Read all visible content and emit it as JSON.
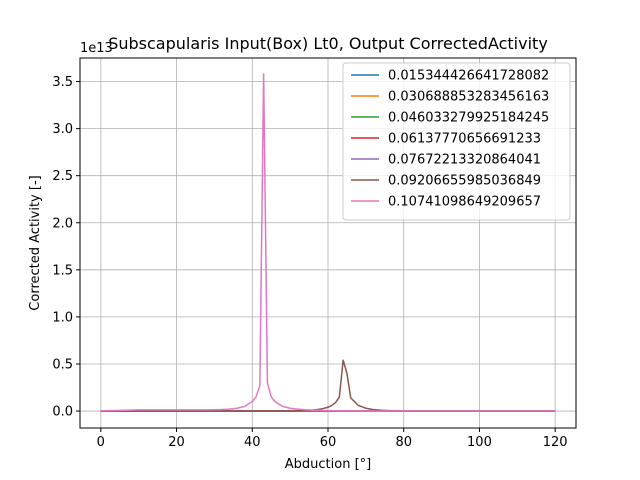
{
  "chart_data": {
    "type": "line",
    "title": "Subscapularis Input(Box) Lt0, Output CorrectedActivity",
    "xlabel": "Abduction [°]",
    "ylabel": "Corrected Activity [-]",
    "y_offset_label": "1e13",
    "xlim": [
      -5.5,
      125.5
    ],
    "ylim": [
      -0.18,
      3.75
    ],
    "x_ticks": [
      0,
      20,
      40,
      60,
      80,
      100,
      120
    ],
    "y_ticks": [
      0.0,
      0.5,
      1.0,
      1.5,
      2.0,
      2.5,
      3.0,
      3.5
    ],
    "x_tick_labels": [
      "0",
      "20",
      "40",
      "60",
      "80",
      "100",
      "120"
    ],
    "y_tick_labels": [
      "0.0",
      "0.5",
      "1.0",
      "1.5",
      "2.0",
      "2.5",
      "3.0",
      "3.5"
    ],
    "grid": true,
    "legend_position": "top-right",
    "x": [
      0,
      2,
      4,
      6,
      8,
      10,
      12,
      14,
      16,
      18,
      20,
      22,
      24,
      26,
      28,
      30,
      32,
      34,
      36,
      38,
      40,
      41,
      42,
      43,
      44,
      45,
      46,
      48,
      50,
      52,
      54,
      56,
      58,
      60,
      61,
      62,
      63,
      64,
      65,
      66,
      68,
      70,
      72,
      74,
      76,
      78,
      80,
      85,
      90,
      95,
      100,
      105,
      110,
      115,
      120
    ],
    "series": [
      {
        "name": "0.015344426641728082",
        "color": "#1f77b4",
        "values": [
          0,
          0,
          0,
          0,
          0,
          0,
          0,
          0,
          0,
          0,
          0,
          0,
          0,
          0,
          0,
          0,
          0,
          0,
          0,
          0,
          0,
          0,
          0,
          0,
          0,
          0,
          0,
          0,
          0,
          0,
          0,
          0,
          0,
          0,
          0,
          0,
          0,
          0,
          0,
          0,
          0,
          0,
          0,
          0,
          0,
          0,
          0,
          0,
          0,
          0,
          0,
          0,
          0,
          0,
          0
        ]
      },
      {
        "name": "0.030688853283456163",
        "color": "#ff7f0e",
        "values": [
          0,
          0,
          0,
          0,
          0,
          0,
          0,
          0,
          0,
          0,
          0,
          0,
          0,
          0,
          0,
          0,
          0,
          0,
          0,
          0,
          0,
          0,
          0,
          0,
          0,
          0,
          0,
          0,
          0,
          0,
          0,
          0,
          0,
          0,
          0,
          0,
          0,
          0,
          0,
          0,
          0,
          0,
          0,
          0,
          0,
          0,
          0,
          0,
          0,
          0,
          0,
          0,
          0,
          0,
          0
        ]
      },
      {
        "name": "0.046033279925184245",
        "color": "#2ca02c",
        "values": [
          0,
          0,
          0,
          0,
          0,
          0,
          0,
          0,
          0,
          0,
          0,
          0,
          0,
          0,
          0,
          0,
          0,
          0,
          0,
          0,
          0,
          0,
          0,
          0,
          0,
          0,
          0,
          0,
          0,
          0,
          0,
          0,
          0,
          0,
          0,
          0,
          0,
          0,
          0,
          0,
          0,
          0,
          0,
          0,
          0,
          0,
          0,
          0,
          0,
          0,
          0,
          0,
          0,
          0,
          0
        ]
      },
      {
        "name": "0.06137770656691233",
        "color": "#d62728",
        "values": [
          0,
          0,
          0,
          0,
          0,
          0,
          0,
          0,
          0,
          0,
          0,
          0,
          0,
          0,
          0,
          0,
          0,
          0,
          0,
          0,
          0,
          0,
          0,
          0,
          0,
          0,
          0,
          0,
          0,
          0,
          0,
          0,
          0,
          0,
          0,
          0,
          0,
          0,
          0,
          0,
          0,
          0,
          0,
          0,
          0,
          0,
          0,
          0,
          0,
          0,
          0,
          0,
          0,
          0,
          0
        ]
      },
      {
        "name": "0.07672213320864041",
        "color": "#9467bd",
        "values": [
          0,
          0,
          0,
          0,
          0,
          0,
          0,
          0,
          0,
          0,
          0,
          0,
          0,
          0,
          0,
          0,
          0,
          0,
          0,
          0,
          0,
          0,
          0,
          0,
          0,
          0,
          0,
          0,
          0,
          0,
          0,
          0,
          0,
          0,
          0,
          0,
          0,
          0,
          0,
          0,
          0,
          0,
          0,
          0,
          0,
          0,
          0,
          0,
          0,
          0,
          0,
          0,
          0,
          0,
          0
        ]
      },
      {
        "name": "0.09206655985036849",
        "color": "#8c564b",
        "values": [
          0,
          0,
          0,
          0,
          0.001,
          0.001,
          0.001,
          0.001,
          0.001,
          0.001,
          0.001,
          0.001,
          0.001,
          0.001,
          0.001,
          0.001,
          0.001,
          0.001,
          0.001,
          0.001,
          0.001,
          0.001,
          0.001,
          0.001,
          0.001,
          0.001,
          0.001,
          0.002,
          0.003,
          0.004,
          0.006,
          0.01,
          0.02,
          0.04,
          0.06,
          0.09,
          0.15,
          0.54,
          0.4,
          0.14,
          0.06,
          0.03,
          0.015,
          0.008,
          0.005,
          0.003,
          0.002,
          0.001,
          0,
          0,
          0,
          0,
          0,
          0,
          0
        ]
      },
      {
        "name": "0.10741098649209657",
        "color": "#e377c2",
        "values": [
          0.003,
          0.004,
          0.006,
          0.008,
          0.01,
          0.012,
          0.013,
          0.013,
          0.013,
          0.013,
          0.012,
          0.012,
          0.012,
          0.012,
          0.013,
          0.014,
          0.016,
          0.02,
          0.03,
          0.05,
          0.1,
          0.15,
          0.27,
          3.58,
          0.3,
          0.15,
          0.1,
          0.05,
          0.03,
          0.02,
          0.014,
          0.01,
          0.007,
          0.005,
          0.004,
          0.003,
          0.003,
          0.002,
          0.002,
          0.002,
          0.001,
          0.001,
          0.001,
          0,
          0,
          0,
          0,
          0,
          0,
          0,
          0,
          0,
          0,
          0,
          0
        ]
      }
    ]
  }
}
